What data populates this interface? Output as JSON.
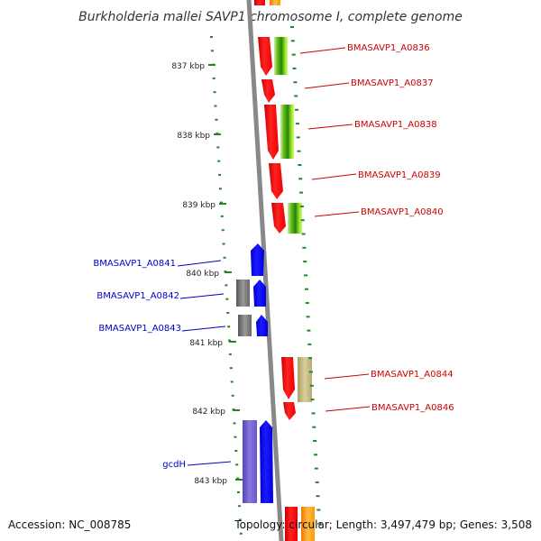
{
  "title": "Burkholderia mallei SAVP1 chromosome I, complete genome",
  "footer": {
    "accession": "Accession: NC_008785",
    "topology": "Topology: circular; Length: 3,497,479 bp; Genes: 3,508"
  },
  "ticks": [
    "837 kbp",
    "838 kbp",
    "839 kbp",
    "840 kbp",
    "841 kbp",
    "842 kbp",
    "843 kbp"
  ],
  "genes_right": [
    "BMASAVP1_A0836",
    "BMASAVP1_A0837",
    "BMASAVP1_A0838",
    "BMASAVP1_A0839",
    "BMASAVP1_A0840",
    "BMASAVP1_A0844",
    "BMASAVP1_A0846"
  ],
  "genes_left": [
    "BMASAVP1_A0841",
    "BMASAVP1_A0842",
    "BMASAVP1_A0843",
    "gcdH"
  ],
  "colors": {
    "forward_strand": "#ff0000",
    "reverse_strand": "#0000ff",
    "cog_green": "#33aa00",
    "cog_grey": "#777777",
    "cog_khaki": "#bbb080",
    "cog_orange": "#ff9900",
    "cog_purple": "#6655cc",
    "backbone": "#888888",
    "ticks": "#228822"
  }
}
